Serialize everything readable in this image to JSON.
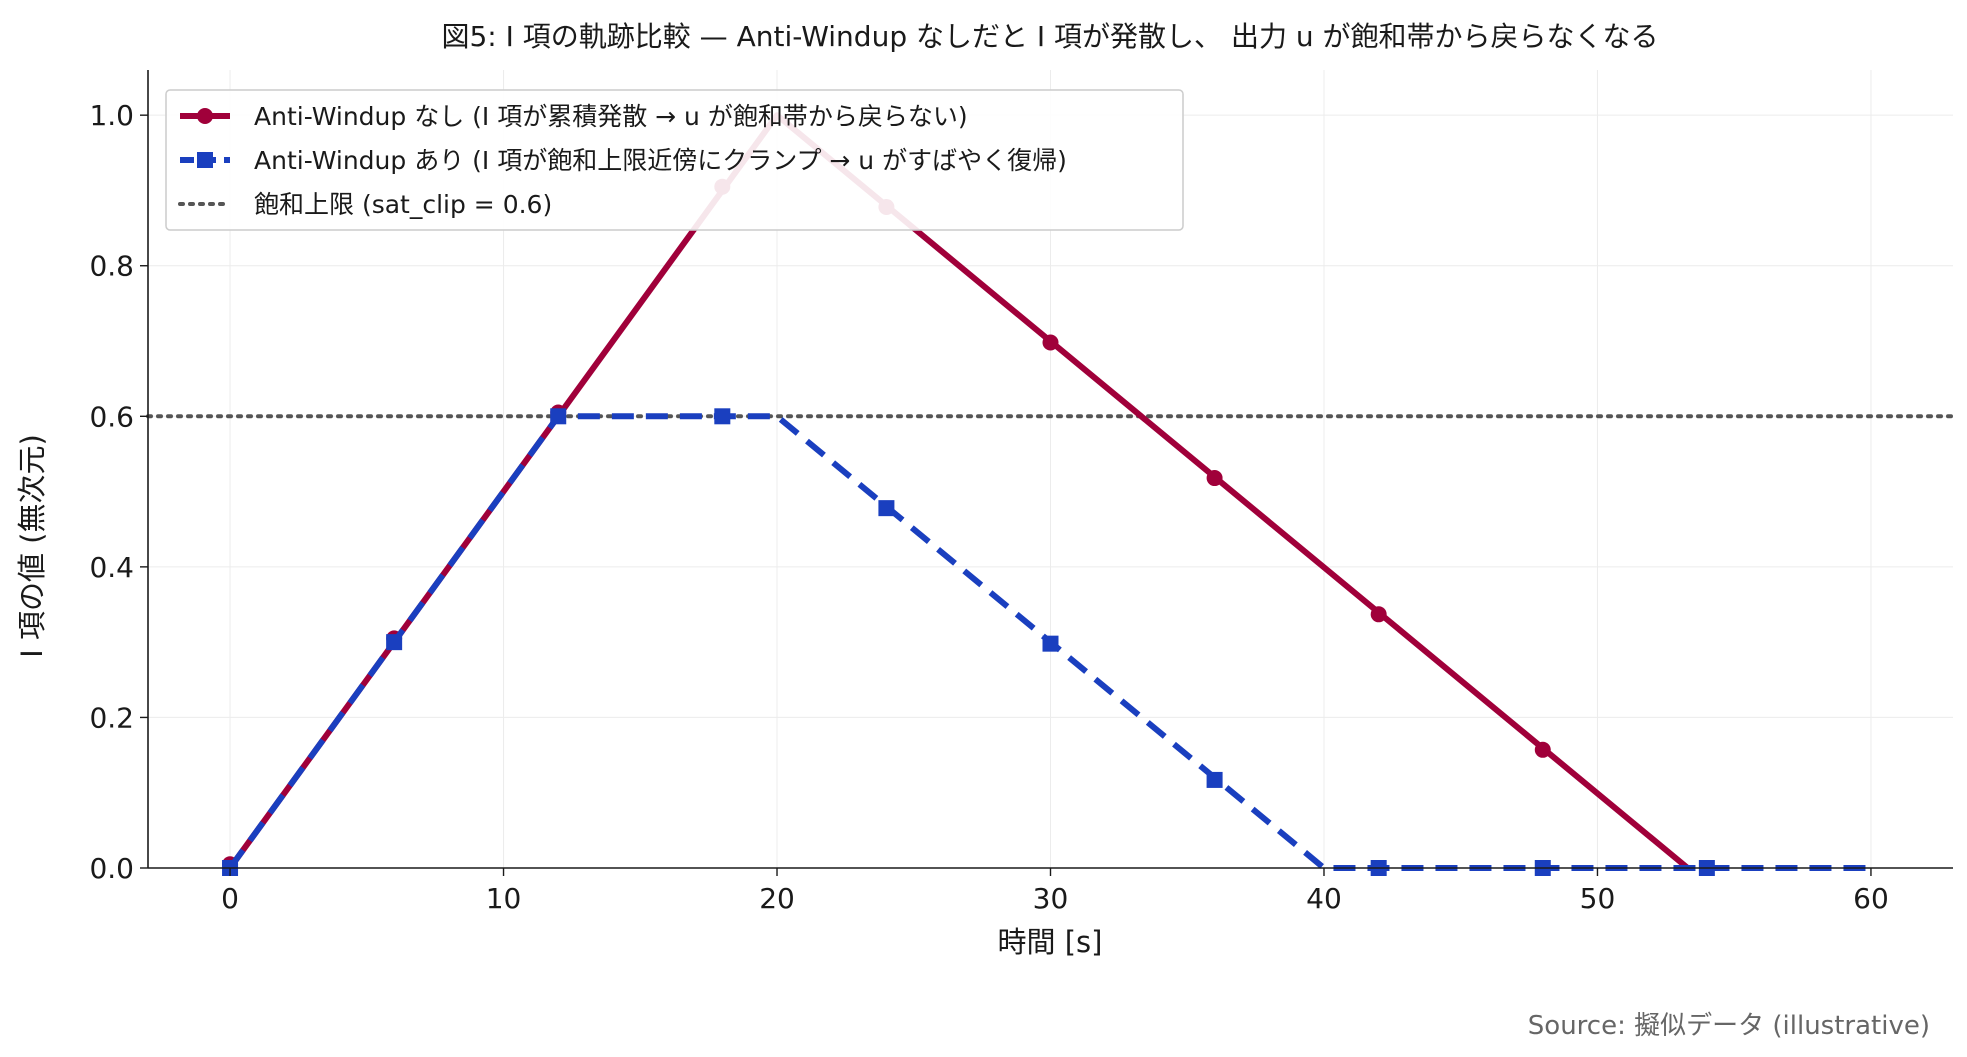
{
  "chart_data": {
    "type": "line",
    "title": "図5: I 項の軌跡比較 — Anti-Windup なしだと I 項が発散し、 出力 u が飽和帯から戻らなくなる",
    "xlabel": "時間 [s]",
    "ylabel": "I 項の値 (無次元)",
    "xlim": [
      -3,
      63
    ],
    "ylim": [
      0,
      1.06
    ],
    "x_ticks": [
      0,
      10,
      20,
      30,
      40,
      50,
      60
    ],
    "y_ticks": [
      0.0,
      0.2,
      0.4,
      0.6,
      0.8,
      1.0
    ],
    "x_tick_labels": [
      "0",
      "10",
      "20",
      "30",
      "40",
      "50",
      "60"
    ],
    "y_tick_labels": [
      "0.0",
      "0.2",
      "0.4",
      "0.6",
      "0.8",
      "1.0"
    ],
    "grid": true,
    "legend_position": "top-left",
    "series": [
      {
        "name": "Anti-Windup なし (I 項が累積発散 → u が飽和帯から戻らない)",
        "color": "#a0003a",
        "line_style": "solid",
        "marker": "circle",
        "line": [
          [
            0,
            0.0
          ],
          [
            20,
            1.0
          ],
          [
            53.3,
            0.0
          ]
        ],
        "markers": [
          [
            0,
            0.005
          ],
          [
            6,
            0.305
          ],
          [
            12,
            0.605
          ],
          [
            18,
            0.905
          ],
          [
            24,
            0.878
          ],
          [
            30,
            0.698
          ],
          [
            36,
            0.518
          ],
          [
            42,
            0.337
          ],
          [
            48,
            0.157
          ]
        ]
      },
      {
        "name": "Anti-Windup あり (I 項が飽和上限近傍にクランプ → u がすばやく復帰)",
        "color": "#1a3fbf",
        "line_style": "dashed",
        "marker": "square",
        "line": [
          [
            0,
            0.0
          ],
          [
            12,
            0.6
          ],
          [
            20,
            0.6
          ],
          [
            40,
            0.0
          ],
          [
            60,
            0.0
          ]
        ],
        "markers": [
          [
            0,
            0.0
          ],
          [
            6,
            0.3
          ],
          [
            12,
            0.6
          ],
          [
            18,
            0.6
          ],
          [
            24,
            0.478
          ],
          [
            30,
            0.298
          ],
          [
            36,
            0.117
          ],
          [
            42,
            0.0
          ],
          [
            48,
            0.0
          ],
          [
            54,
            0.0
          ]
        ]
      }
    ],
    "reference_line": {
      "name": "飽和上限 (sat_clip = 0.6)",
      "y": 0.6,
      "color": "#555555",
      "line_style": "dotted"
    }
  },
  "source_note": "Source: 擬似データ (illustrative)"
}
